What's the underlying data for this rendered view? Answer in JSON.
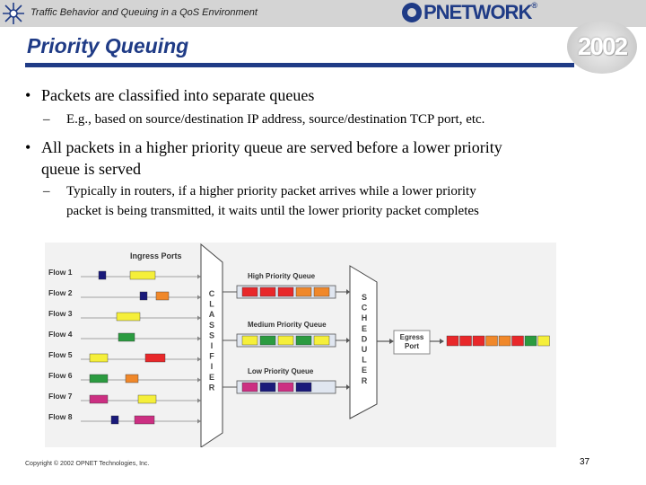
{
  "header": {
    "subtitle": "Traffic Behavior and Queuing in a QoS Environment",
    "logo_text": "PNETWORK",
    "logo_sup": "®",
    "year": "2002"
  },
  "slide": {
    "title": "Priority Queuing",
    "bullets": [
      {
        "text": "Packets are classified into separate queues",
        "subs": [
          "E.g., based on source/destination IP address, source/destination TCP port, etc."
        ]
      },
      {
        "text_lines": [
          "All packets in a higher priority queue are served before a lower priority",
          "queue is served"
        ],
        "subs_lines": [
          "Typically in routers, if a higher priority packet arrives while a lower priority",
          "packet is being transmitted, it waits until the lower priority packet completes"
        ]
      }
    ],
    "bullet_glyph": "•",
    "dash_glyph": "–"
  },
  "figure": {
    "ingress_label": "Ingress Ports",
    "flows": [
      "Flow 1",
      "Flow 2",
      "Flow 3",
      "Flow 4",
      "Flow 5",
      "Flow 6",
      "Flow 7",
      "Flow 8"
    ],
    "classifier_label": "CLASSIFIER",
    "scheduler_label": "SCHEDULER",
    "queues": [
      {
        "label": "High Priority Queue",
        "packets": [
          "#e8282a",
          "#e8282a",
          "#e8282a",
          "#f0882a",
          "#f0882a"
        ]
      },
      {
        "label": "Medium Priority Queue",
        "packets": [
          "#f5ef3a",
          "#2b9b40",
          "#f5ef3a",
          "#2b9b40",
          "#f5ef3a"
        ]
      },
      {
        "label": "Low Priority Queue",
        "packets": [
          "#cc2f82",
          "#1a1a7a",
          "#cc2f82",
          "#1a1a7a"
        ]
      }
    ],
    "egress_label_lines": [
      "Egress",
      "Port"
    ],
    "egress_packets": [
      "#e8282a",
      "#e8282a",
      "#e8282a",
      "#f0882a",
      "#f0882a",
      "#e8282a",
      "#2b9b40",
      "#f5ef3a"
    ],
    "colors": {
      "red": "#e8282a",
      "orange": "#f0882a",
      "yellow": "#f5ef3a",
      "green": "#2b9b40",
      "navy": "#1a1a7a",
      "magenta": "#cc2f82",
      "background": "#f2f2f2",
      "box": "#e0e6f0"
    }
  },
  "footer": {
    "copyright": "Copyright © 2002 OPNET Technologies, Inc.",
    "page": "37"
  }
}
